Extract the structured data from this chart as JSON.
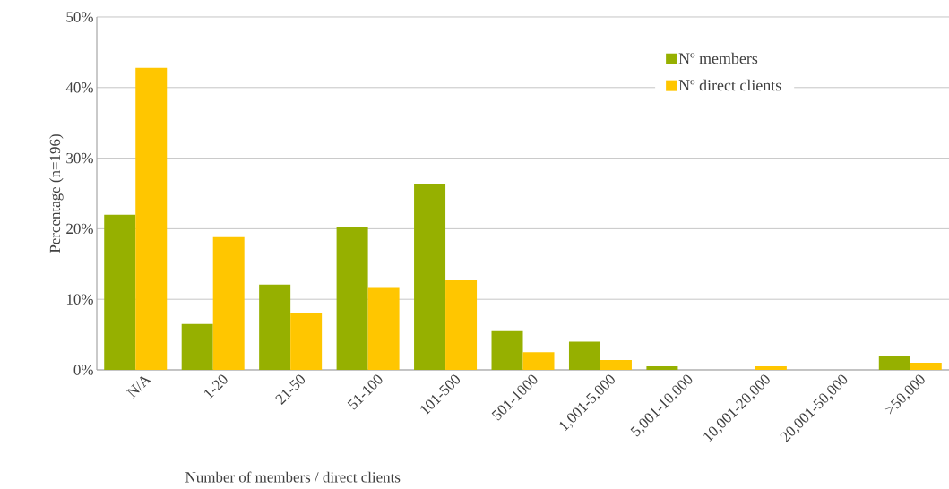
{
  "chart_data": {
    "type": "bar",
    "xlabel": "Number of members / direct clients",
    "ylabel": "Percentage (n=196)",
    "categories": [
      "N/A",
      "1-20",
      "21-50",
      "51-100",
      "101-500",
      "501-1000",
      "1,001-5,000",
      "5,001-10,000",
      "10,001-20,000",
      "20,001-50,000",
      ">50,000"
    ],
    "series": [
      {
        "name": "Nº members",
        "color": "#96b000",
        "values": [
          22.0,
          6.5,
          12.1,
          20.3,
          26.4,
          5.5,
          4.0,
          0.5,
          0,
          0,
          2.0
        ]
      },
      {
        "name": "Nº direct clients",
        "color": "#ffc600",
        "values": [
          42.8,
          18.8,
          8.1,
          11.6,
          12.7,
          2.5,
          1.4,
          0,
          0.5,
          0,
          1.0
        ]
      }
    ],
    "ylim": [
      0,
      50
    ],
    "yticks": [
      {
        "value": 0,
        "label": "0%"
      },
      {
        "value": 10,
        "label": "10%"
      },
      {
        "value": 20,
        "label": "20%"
      },
      {
        "value": 30,
        "label": "30%"
      },
      {
        "value": 40,
        "label": "40%"
      },
      {
        "value": 50,
        "label": "50%"
      }
    ],
    "grid": "y",
    "legend": "top right"
  }
}
